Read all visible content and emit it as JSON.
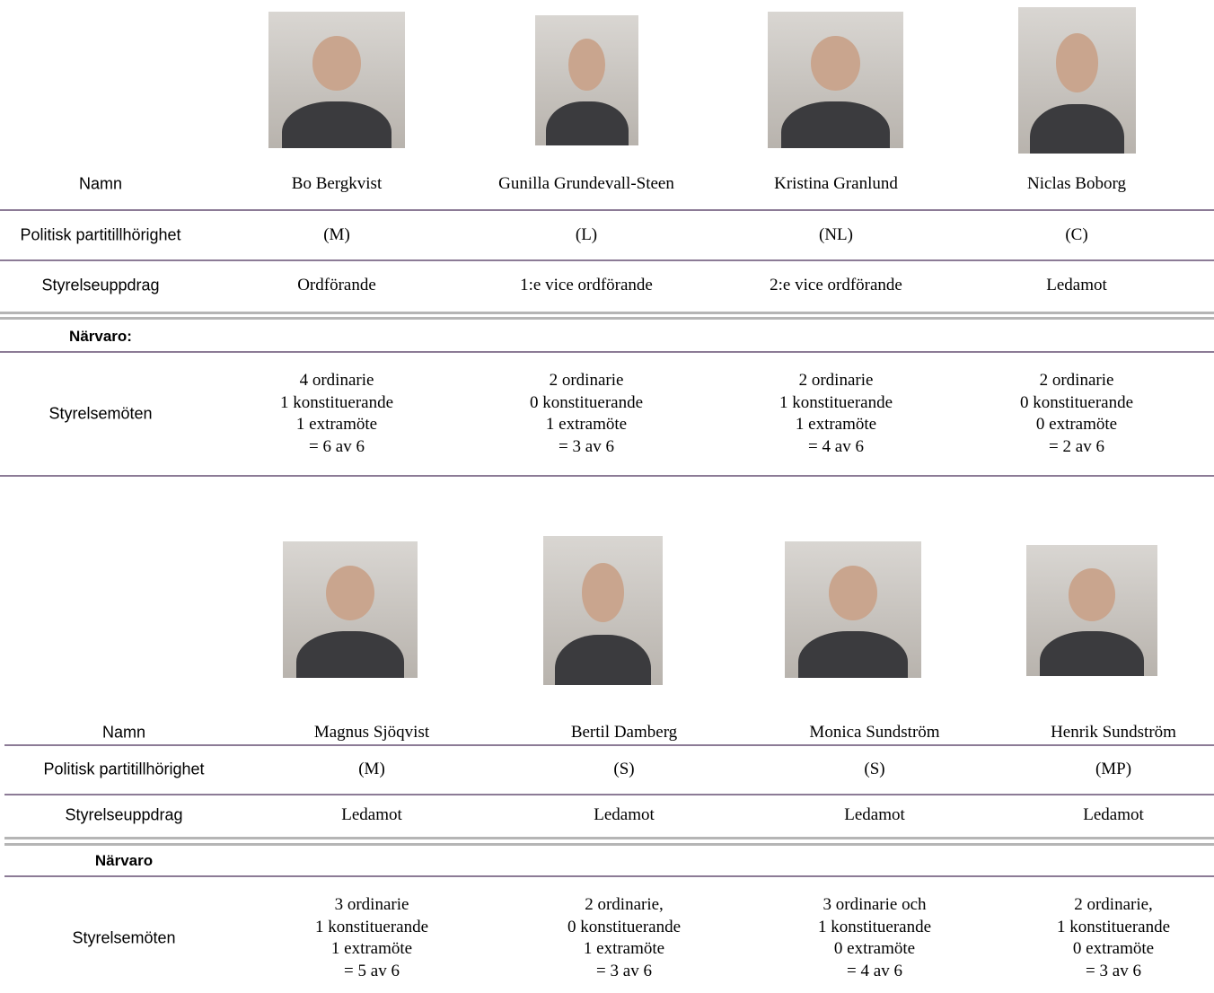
{
  "tables": [
    {
      "row_labels": [
        "Namn",
        "Politisk partitillhörighet",
        "Styrelseuppdrag",
        "Närvaro:",
        "Styrelsemöten"
      ],
      "members": [
        {
          "name": "Bo Bergkvist",
          "party": "(M)",
          "role": "Ordförande",
          "attendance": [
            "4 ordinarie",
            "1 konstituerande",
            "1 extramöte",
            "= 6 av 6"
          ]
        },
        {
          "name": "Gunilla Grundevall-Steen",
          "party": "(L)",
          "role": "1:e vice ordförande",
          "attendance": [
            "2 ordinarie",
            "0 konstituerande",
            "1 extramöte",
            "= 3 av 6"
          ]
        },
        {
          "name": "Kristina Granlund",
          "party": "(NL)",
          "role": "2:e vice ordförande",
          "attendance": [
            "2 ordinarie",
            "1 konstituerande",
            "1 extramöte",
            "= 4 av 6"
          ]
        },
        {
          "name": "Niclas Boborg",
          "party": "(C)",
          "role": "Ledamot",
          "attendance": [
            "2 ordinarie",
            "0 konstituerande",
            "0 extramöte",
            "= 2 av 6"
          ]
        }
      ]
    },
    {
      "row_labels": [
        "Namn",
        "Politisk partitillhörighet",
        "Styrelseuppdrag",
        "Närvaro",
        "Styrelsemöten"
      ],
      "members": [
        {
          "name": "Magnus Sjöqvist",
          "party": "(M)",
          "role": "Ledamot",
          "attendance": [
            "3 ordinarie",
            "1 konstituerande",
            "1 extramöte",
            "= 5 av 6"
          ]
        },
        {
          "name": "Bertil Damberg",
          "party": "(S)",
          "role": "Ledamot",
          "attendance": [
            "2 ordinarie,",
            "0 konstituerande",
            "1 extramöte",
            "= 3 av 6"
          ]
        },
        {
          "name": "Monica Sundström",
          "party": "(S)",
          "role": "Ledamot",
          "attendance": [
            "3 ordinarie och",
            "1 konstituerande",
            "0 extramöte",
            "= 4 av 6"
          ]
        },
        {
          "name": "Henrik Sundström",
          "party": "(MP)",
          "role": "Ledamot",
          "attendance": [
            "2 ordinarie,",
            "1 konstituerande",
            "0 extramöte",
            "= 3 av 6"
          ]
        }
      ]
    }
  ]
}
